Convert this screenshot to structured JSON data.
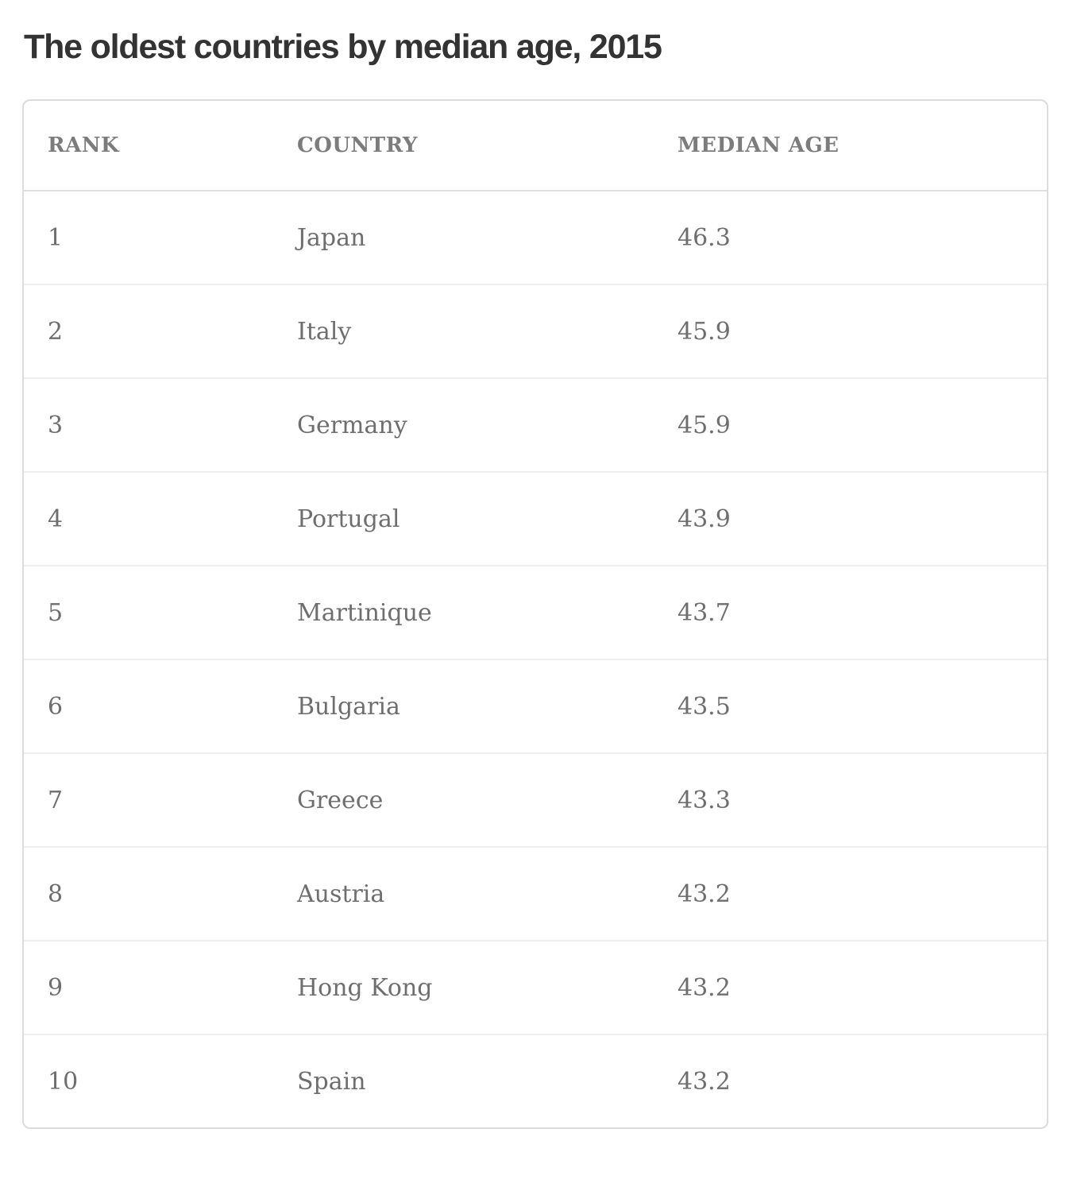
{
  "page": {
    "title": "The oldest countries by median age, 2015"
  },
  "table": {
    "columns": [
      "RANK",
      "COUNTRY",
      "MEDIAN AGE"
    ],
    "rows": [
      {
        "rank": "1",
        "country": "Japan",
        "median_age": "46.3"
      },
      {
        "rank": "2",
        "country": "Italy",
        "median_age": "45.9"
      },
      {
        "rank": "3",
        "country": "Germany",
        "median_age": "45.9"
      },
      {
        "rank": "4",
        "country": "Portugal",
        "median_age": "43.9"
      },
      {
        "rank": "5",
        "country": "Martinique",
        "median_age": "43.7"
      },
      {
        "rank": "6",
        "country": "Bulgaria",
        "median_age": "43.5"
      },
      {
        "rank": "7",
        "country": "Greece",
        "median_age": "43.3"
      },
      {
        "rank": "8",
        "country": "Austria",
        "median_age": "43.2"
      },
      {
        "rank": "9",
        "country": "Hong Kong",
        "median_age": "43.2"
      },
      {
        "rank": "10",
        "country": "Spain",
        "median_age": "43.2"
      }
    ]
  },
  "colors": {
    "title_text": "#333333",
    "header_text": "#7c7c7c",
    "cell_text": "#6e6e6e",
    "card_border": "#dcdcdc",
    "header_divider": "#e0e0e0",
    "row_divider": "#f0f0f0",
    "background": "#ffffff"
  },
  "chart_data": {
    "type": "table",
    "title": "The oldest countries by median age, 2015",
    "columns": [
      "RANK",
      "COUNTRY",
      "MEDIAN AGE"
    ],
    "rows": [
      [
        1,
        "Japan",
        46.3
      ],
      [
        2,
        "Italy",
        45.9
      ],
      [
        3,
        "Germany",
        45.9
      ],
      [
        4,
        "Portugal",
        43.9
      ],
      [
        5,
        "Martinique",
        43.7
      ],
      [
        6,
        "Bulgaria",
        43.5
      ],
      [
        7,
        "Greece",
        43.3
      ],
      [
        8,
        "Austria",
        43.2
      ],
      [
        9,
        "Hong Kong",
        43.2
      ],
      [
        10,
        "Spain",
        43.2
      ]
    ]
  }
}
